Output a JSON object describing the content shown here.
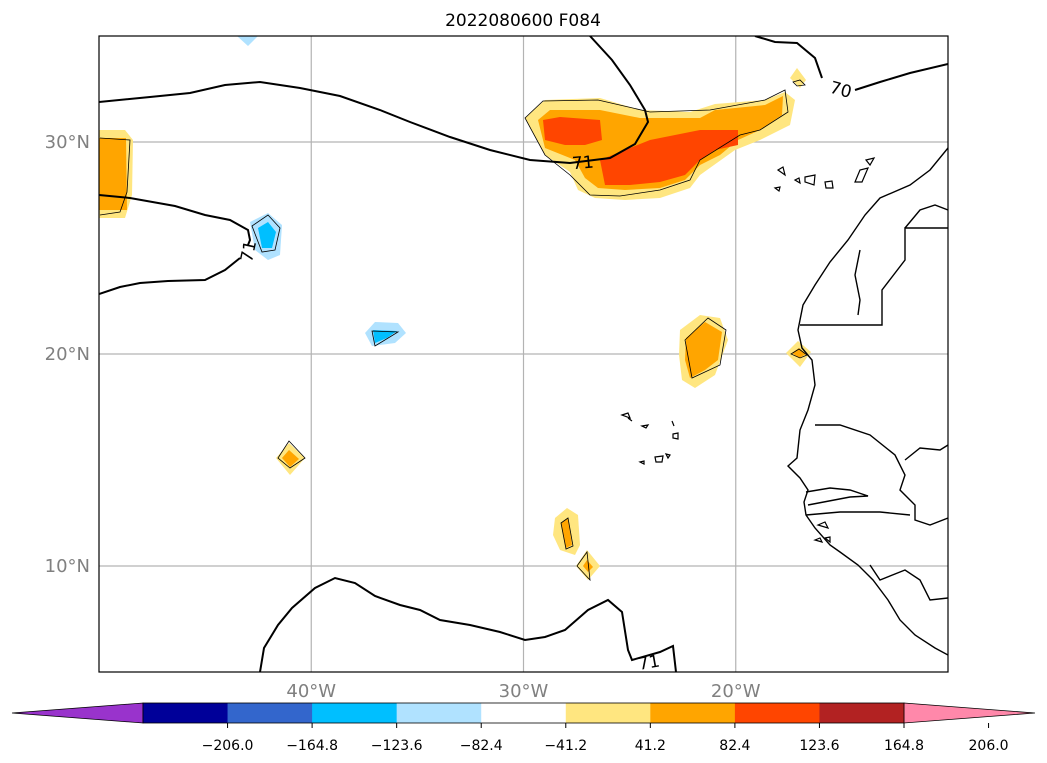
{
  "title": "2022080600 F084",
  "latitude_labels": [
    {
      "text": "30°N",
      "lat": 30
    },
    {
      "text": "20°N",
      "lat": 20
    },
    {
      "text": "10°N",
      "lat": 10
    }
  ],
  "longitude_labels": [
    {
      "text": "40°W",
      "lon": -40
    },
    {
      "text": "30°W",
      "lon": -30
    },
    {
      "text": "20°W",
      "lon": -20
    }
  ],
  "map_extent": {
    "lon_min": -50,
    "lon_max": -10,
    "lat_min": 5,
    "lat_max": 35
  },
  "gridline_color": "#b3b3b3",
  "label_color": "#808080",
  "contour_labels": [
    "71",
    "71",
    "70",
    "71"
  ],
  "colorbar": {
    "levels": [
      -247.2,
      -206.0,
      -164.8,
      -123.6,
      -82.4,
      -41.2,
      41.2,
      82.4,
      123.6,
      164.8,
      206.0,
      247.2
    ],
    "tick_labels": [
      "−206.0",
      "−164.8",
      "−123.6",
      "−82.4",
      "−41.2",
      "41.2",
      "82.4",
      "123.6",
      "164.8",
      "206.0"
    ],
    "colors": [
      "#9933cc",
      "#000099",
      "#3366cc",
      "#00bfff",
      "#b0e2ff",
      "#ffffff",
      "#ffe680",
      "#ffa500",
      "#ff4500",
      "#b22222",
      "#ff88aa"
    ],
    "under_color": "#9933cc",
    "over_color": "#ff88aa"
  }
}
